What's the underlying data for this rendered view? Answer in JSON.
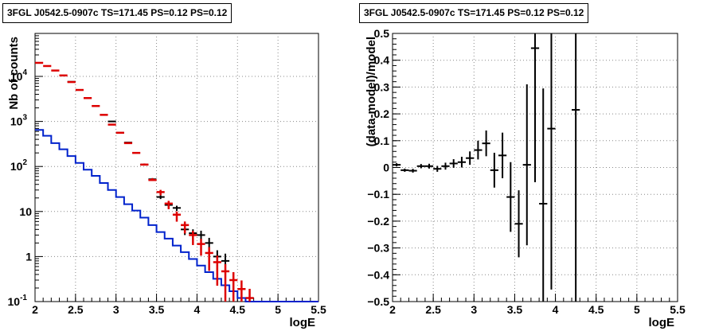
{
  "panels": {
    "left": {
      "title": "3FGL J0542.5-0907c TS=171.45 PS=0.12 PS=0.12"
    },
    "right": {
      "title": "3FGL J0542.5-0907c TS=171.45 PS=0.12 PS=0.12"
    }
  },
  "colors": {
    "data": "#000000",
    "model_total": "#dd0000",
    "model_component": "#0022cc",
    "grid": "#888888"
  },
  "chart_data": [
    {
      "type": "line",
      "xlabel": "logE",
      "ylabel": "Nb of counts",
      "yscale": "log",
      "xlim": [
        2,
        5.5
      ],
      "ylim": [
        0.1,
        90000
      ],
      "grid": true,
      "x_ticks": [
        "2",
        "2.5",
        "3",
        "3.5",
        "4",
        "4.5",
        "5",
        "5.5"
      ],
      "y_ticks": [
        "10^-1",
        "1",
        "10",
        "10^2",
        "10^3",
        "10^4"
      ],
      "bin_edges": [
        2.0,
        2.1,
        2.2,
        2.3,
        2.4,
        2.5,
        2.6,
        2.7,
        2.8,
        2.9,
        3.0,
        3.1,
        3.2,
        3.3,
        3.4,
        3.5,
        3.6,
        3.7,
        3.8,
        3.9,
        4.0,
        4.1,
        4.2,
        4.3,
        4.4,
        4.5,
        4.6,
        4.7,
        4.8,
        4.9,
        5.0,
        5.1,
        5.2,
        5.3,
        5.4,
        5.5
      ],
      "series": [
        {
          "role": "model_component_histogram",
          "color": "#0022cc",
          "values": [
            650,
            480,
            330,
            240,
            170,
            120,
            85,
            62,
            43,
            30,
            21,
            14.5,
            10.5,
            7.3,
            5.0,
            3.5,
            2.5,
            1.75,
            1.25,
            0.88,
            0.63,
            0.45,
            0.32,
            0.23,
            0.17,
            0.12,
            0.1,
            0.1,
            0.1,
            0.1,
            0.1,
            0.1,
            0.1,
            0.1,
            0.1
          ]
        },
        {
          "role": "model_total",
          "color": "#dd0000",
          "x": [
            2.05,
            2.15,
            2.25,
            2.35,
            2.45,
            2.55,
            2.65,
            2.75,
            2.85,
            2.95,
            3.05,
            3.15,
            3.25,
            3.35,
            3.45,
            3.55,
            3.65,
            3.75,
            3.85,
            3.95,
            4.05,
            4.15,
            4.25,
            4.35,
            4.45,
            4.55,
            4.65
          ],
          "y": [
            20000,
            17000,
            13500,
            10500,
            7500,
            5000,
            3300,
            2200,
            1400,
            850,
            560,
            330,
            200,
            110,
            50,
            27,
            15,
            8.5,
            5.0,
            3.0,
            1.9,
            1.2,
            0.75,
            0.47,
            0.3,
            0.19,
            0.12
          ],
          "xerr": 0.05,
          "yerr_lo": [
            0,
            0,
            0,
            0,
            0,
            0,
            0,
            0,
            0,
            0,
            0,
            0,
            0,
            0,
            0,
            0.15,
            0.25,
            0.3,
            0.35,
            0.4,
            0.45,
            0.6,
            0.7,
            0.8,
            0.85,
            0.9,
            0.95
          ],
          "yerr_hi": [
            0,
            0,
            0,
            0,
            0,
            0,
            0,
            0,
            0,
            0,
            0,
            0,
            0,
            0.06,
            0.1,
            0.12,
            0.15,
            0.18,
            0.2,
            0.24,
            0.3,
            0.35,
            0.4,
            0.45,
            0.5,
            0.55,
            0.6
          ]
        },
        {
          "role": "data",
          "color": "#000000",
          "x": [
            2.45,
            2.95,
            3.05,
            3.15,
            3.35,
            3.45,
            3.55,
            3.65,
            3.75,
            3.85,
            3.95,
            4.05,
            4.15,
            4.25,
            4.35
          ],
          "y": [
            7600,
            1000,
            560,
            340,
            110,
            52,
            21,
            14,
            12,
            4.0,
            3.3,
            3.0,
            2.0,
            1.0,
            0.8
          ],
          "xerr": 0.05,
          "yerr_lo": [
            0,
            0,
            0,
            0,
            0.04,
            0.07,
            0.1,
            0.12,
            0.14,
            0.25,
            0.3,
            0.33,
            0.45,
            0.6,
            0.7
          ],
          "yerr_hi": [
            0,
            0,
            0,
            0,
            0.04,
            0.06,
            0.09,
            0.11,
            0.12,
            0.2,
            0.22,
            0.25,
            0.3,
            0.38,
            0.45
          ]
        }
      ]
    },
    {
      "type": "scatter",
      "xlabel": "logE",
      "ylabel": "(data-model)/model",
      "xlim": [
        2,
        5.5
      ],
      "ylim": [
        -0.5,
        0.5
      ],
      "grid": true,
      "x_ticks": [
        "2",
        "2.5",
        "3",
        "3.5",
        "4",
        "4.5",
        "5",
        "5.5"
      ],
      "y_ticks": [
        "-0.5",
        "-0.4",
        "-0.3",
        "-0.2",
        "-0.1",
        "0",
        "0.1",
        "0.2",
        "0.3",
        "0.4",
        "0.5"
      ],
      "series": [
        {
          "role": "residuals",
          "color": "#000000",
          "x": [
            2.05,
            2.15,
            2.25,
            2.35,
            2.45,
            2.55,
            2.65,
            2.75,
            2.85,
            2.95,
            3.05,
            3.15,
            3.25,
            3.35,
            3.45,
            3.55,
            3.65,
            3.75,
            3.85,
            3.95,
            4.25
          ],
          "y": [
            0.01,
            -0.01,
            -0.012,
            0.005,
            0.005,
            -0.005,
            0.005,
            0.015,
            0.02,
            0.035,
            0.065,
            0.09,
            -0.01,
            0.045,
            -0.11,
            -0.21,
            0.01,
            0.445,
            -0.135,
            0.145,
            0.215
          ],
          "xerr": 0.05,
          "yerr": [
            0.006,
            0.006,
            0.007,
            0.008,
            0.009,
            0.011,
            0.013,
            0.016,
            0.02,
            0.025,
            0.035,
            0.048,
            0.065,
            0.085,
            0.13,
            0.125,
            0.3,
            0.5,
            0.43,
            0.6,
            0.75
          ]
        }
      ]
    }
  ]
}
